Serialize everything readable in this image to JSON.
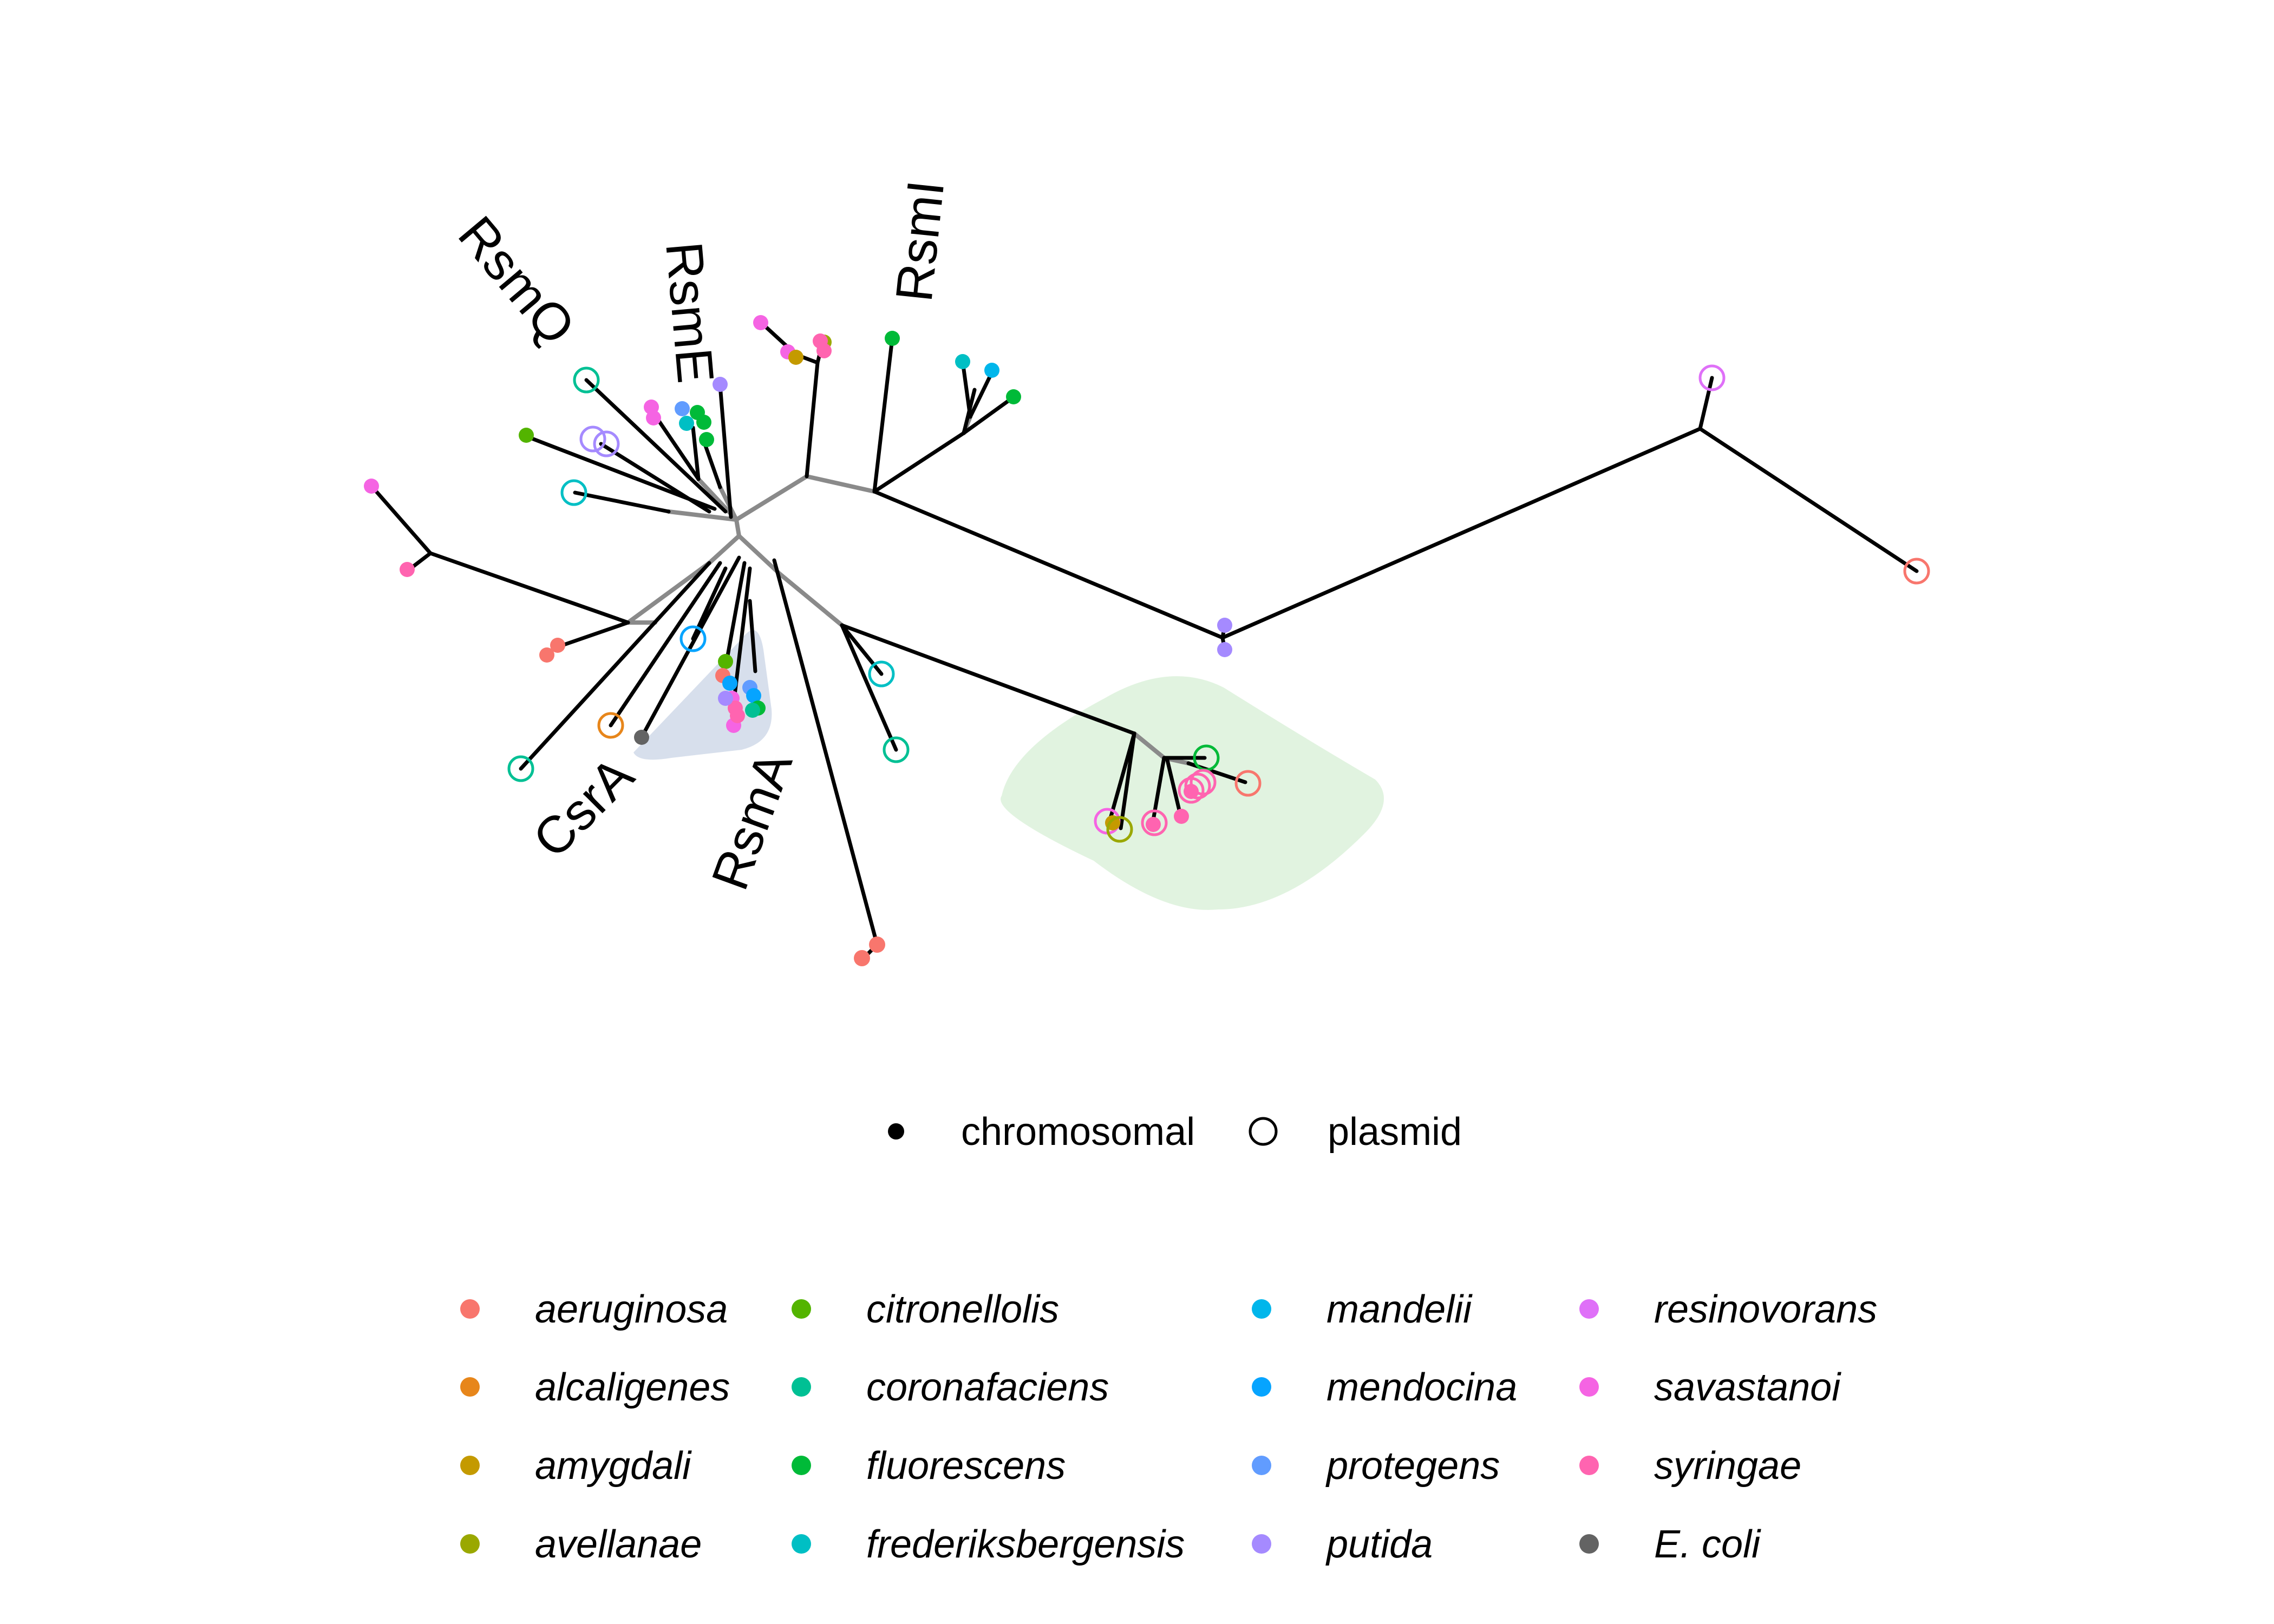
{
  "clade_labels": {
    "rsmq": "RsmQ",
    "rsme": "RsmE",
    "rsmi": "RsmI",
    "csra": "CsrA",
    "rsma": "RsmA"
  },
  "shape_legend": {
    "chromosomal": "chromosomal",
    "plasmid": "plasmid"
  },
  "species_legend": [
    {
      "label": "aeruginosa",
      "color": "#F8766D"
    },
    {
      "label": "alcaligenes",
      "color": "#E7861B"
    },
    {
      "label": "amygdali",
      "color": "#C49A00"
    },
    {
      "label": "avellanae",
      "color": "#9AA800"
    },
    {
      "label": "citronellolis",
      "color": "#53B400"
    },
    {
      "label": "coronafaciens",
      "color": "#00C094"
    },
    {
      "label": "fluorescens",
      "color": "#00BA38"
    },
    {
      "label": "frederiksbergensis",
      "color": "#00BFC4"
    },
    {
      "label": "mandelii",
      "color": "#00B6EB"
    },
    {
      "label": "mendocina",
      "color": "#06A4FF"
    },
    {
      "label": "protegens",
      "color": "#619CFF"
    },
    {
      "label": "putida",
      "color": "#A58AFF"
    },
    {
      "label": "resinovorans",
      "color": "#DF70F8"
    },
    {
      "label": "savastanoi",
      "color": "#F564E3"
    },
    {
      "label": "syringae",
      "color": "#FF64B0"
    },
    {
      "label": "E. coli",
      "color": "#636363"
    }
  ],
  "colors": {
    "branch": "#000000",
    "inner_branch": "#8a8a8a",
    "rsma_hull": "#c9d4e6",
    "green_hull": "#d7efd5"
  }
}
